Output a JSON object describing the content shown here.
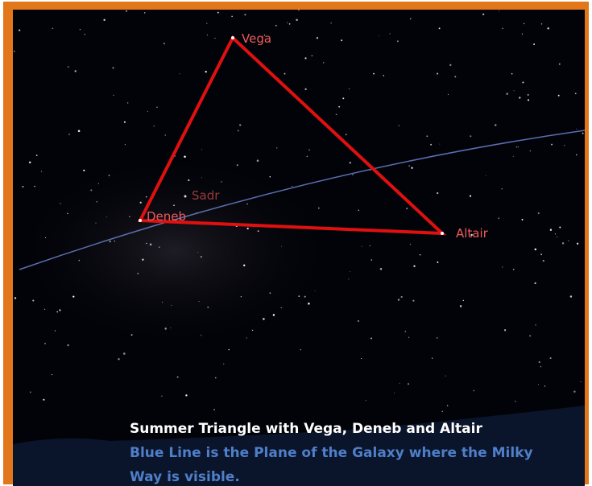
{
  "stars": [
    {
      "label": "Vega"
    },
    {
      "label": "Deneb"
    },
    {
      "label": "Altair"
    },
    {
      "label": "Sadr"
    }
  ],
  "caption": {
    "title": "Summer Triangle with Vega, Deneb and Altair",
    "subtitle": "Blue Line is the Plane of the Galaxy where the Milky Way is visible."
  }
}
